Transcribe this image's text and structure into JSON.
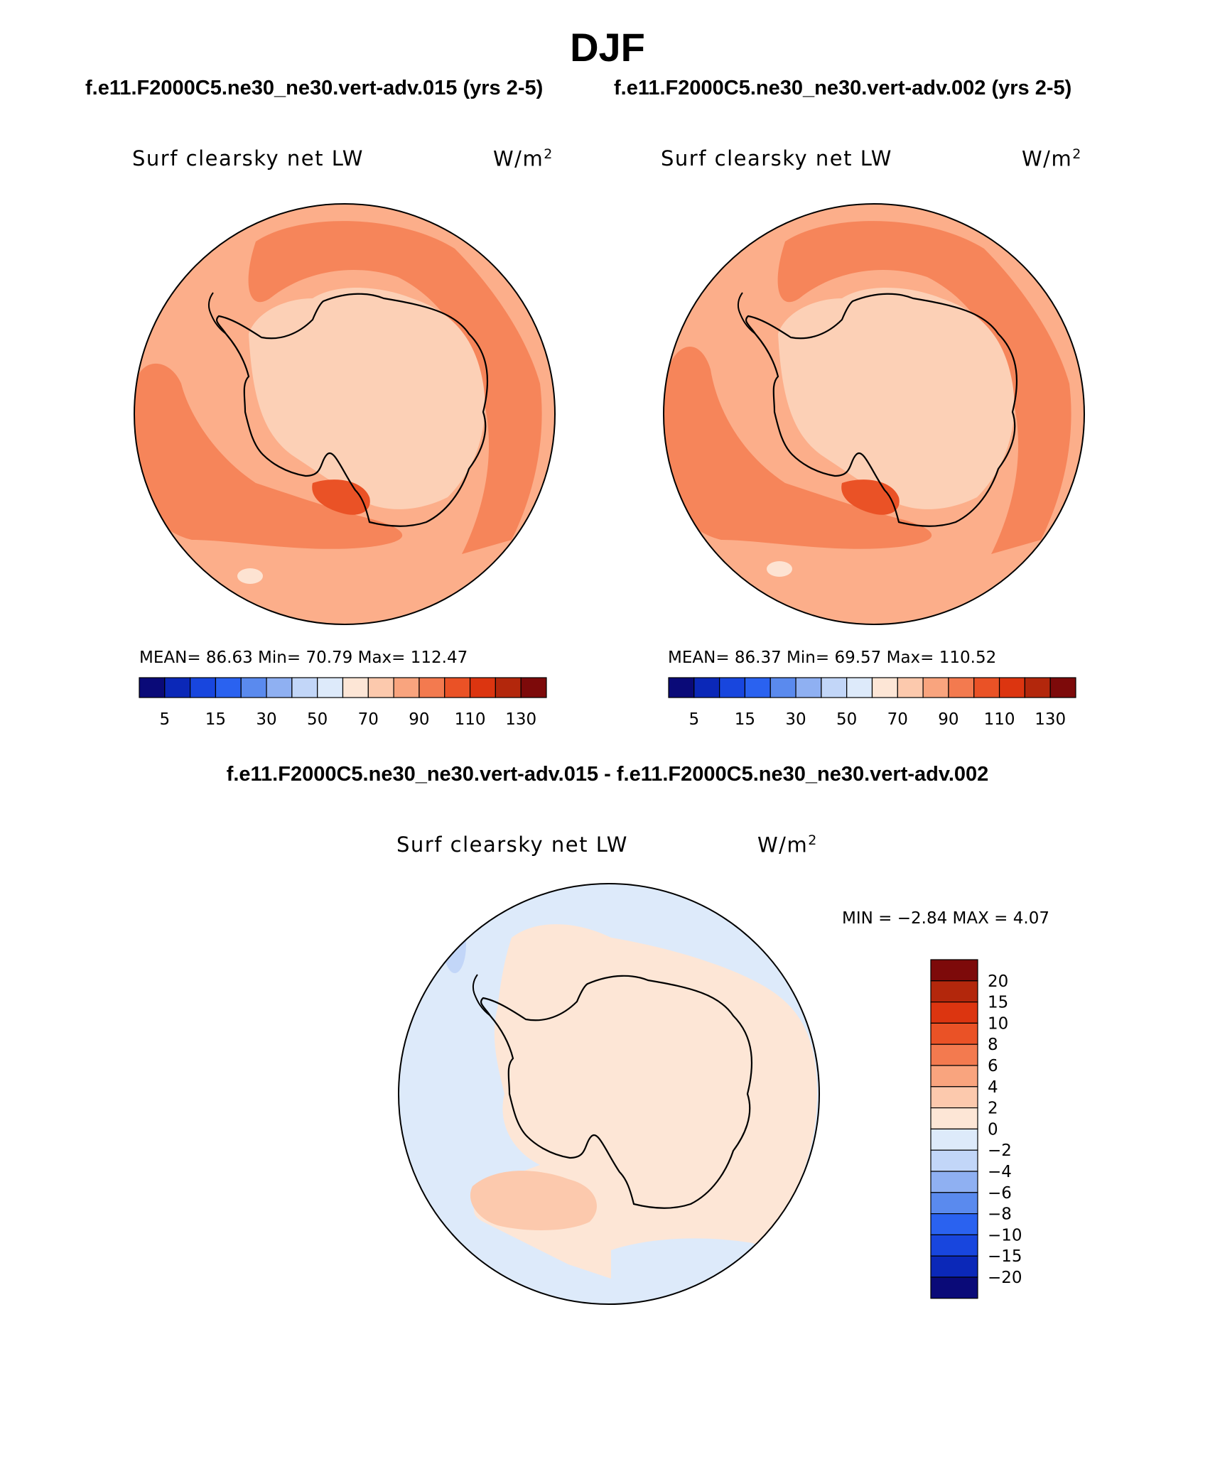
{
  "season": "DJF",
  "case_labels": {
    "left": "f.e11.F2000C5.ne30_ne30.vert-adv.015 (yrs 2-5)",
    "right": "f.e11.F2000C5.ne30_ne30.vert-adv.002 (yrs 2-5)"
  },
  "difference_title": "f.e11.F2000C5.ne30_ne30.vert-adv.015 - f.e11.F2000C5.ne30_ne30.vert-adv.002",
  "panels": [
    {
      "variable": "Surf clearsky net LW",
      "units_base": "W/m",
      "units_exp": "2",
      "stats_text": "MEAN=   86.63   Min=    70.79   Max=  112.47",
      "mean": 86.63,
      "min": 70.79,
      "max": 112.47
    },
    {
      "variable": "Surf clearsky net LW",
      "units_base": "W/m",
      "units_exp": "2",
      "stats_text": "MEAN=   86.37   Min=    69.57   Max=  110.52",
      "mean": 86.37,
      "min": 69.57,
      "max": 110.52
    }
  ],
  "difference_panel": {
    "variable": "Surf clearsky net LW",
    "units_base": "W/m",
    "units_exp": "2",
    "stats_text": "MIN =   −2.84  MAX =     4.07",
    "min": -2.84,
    "max": 4.07
  },
  "abs_colorbar": {
    "colors": [
      "#0a0a78",
      "#0b28b8",
      "#1846de",
      "#2a62f0",
      "#5a8aee",
      "#8fb0f2",
      "#c2d6f8",
      "#ddeafa",
      "#fde6d6",
      "#fcc9ad",
      "#f9a47e",
      "#f37a4f",
      "#ea5226",
      "#dc3510",
      "#b3270c",
      "#7d0a0a"
    ],
    "tick_labels": [
      "5",
      "15",
      "30",
      "50",
      "70",
      "90",
      "110",
      "130"
    ]
  },
  "diff_colorbar": {
    "colors_top_to_bottom": [
      "#7d0a0a",
      "#b3270c",
      "#dc3510",
      "#ea5226",
      "#f37a4f",
      "#f9a47e",
      "#fcc9ad",
      "#fde6d6",
      "#ddeafa",
      "#c2d6f8",
      "#8fb0f2",
      "#5a8aee",
      "#2a62f0",
      "#1846de",
      "#0b28b8",
      "#0a0a78"
    ],
    "tick_labels": [
      "20",
      "15",
      "10",
      "8",
      "6",
      "4",
      "2",
      "0",
      "−2",
      "−4",
      "−6",
      "−8",
      "−10",
      "−15",
      "−20"
    ]
  },
  "map_colors": {
    "ocean_base": "#fcae8a",
    "warm_band": "#f6855a",
    "ice_sheet": "#fcd0b6",
    "hot_spot": "#ea5226",
    "light_patch": "#fde3d2",
    "diff_pos": "#fde6d6",
    "diff_pos_strong": "#fcc9ad",
    "diff_neg": "#ddeafa",
    "diff_neg_strong": "#c2d6f8"
  }
}
